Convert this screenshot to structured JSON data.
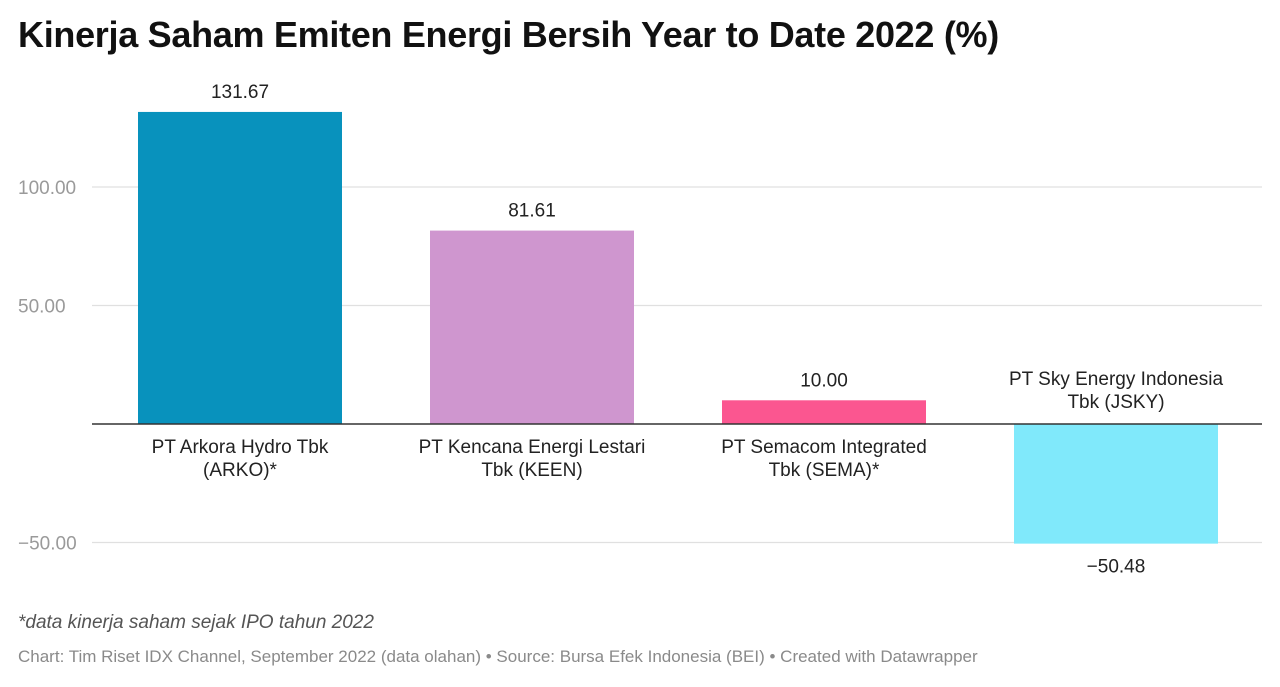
{
  "chart_data": {
    "type": "bar",
    "title": "Kinerja Saham Emiten Energi Bersih Year to Date 2022 (%)",
    "categories": [
      [
        "PT Arkora Hydro Tbk",
        "(ARKO)*"
      ],
      [
        "PT Kencana Energi Lestari",
        "Tbk (KEEN)"
      ],
      [
        "PT Semacom Integrated",
        "Tbk (SEMA)*"
      ],
      [
        "PT Sky Energy Indonesia",
        "Tbk (JSKY)"
      ]
    ],
    "values": [
      131.67,
      81.61,
      10.0,
      -50.48
    ],
    "value_labels": [
      "131.67",
      "81.61",
      "10.00",
      "−50.48"
    ],
    "colors": [
      "#0892bd",
      "#cf96cf",
      "#fb5690",
      "#80e9fb"
    ],
    "yticks": [
      {
        "value": 100,
        "label": "100.00"
      },
      {
        "value": 50,
        "label": "50.00"
      },
      {
        "value": -50,
        "label": "−50.00"
      }
    ],
    "ylim": [
      -50.48,
      131.67
    ],
    "grid": true,
    "xlabel": "",
    "ylabel": ""
  },
  "footer": {
    "note": "*data kinerja saham sejak IPO tahun 2022",
    "source": "Chart: Tim Riset IDX Channel, September 2022 (data olahan) • Source: Bursa Efek Indonesia (BEI) • Created with Datawrapper"
  }
}
